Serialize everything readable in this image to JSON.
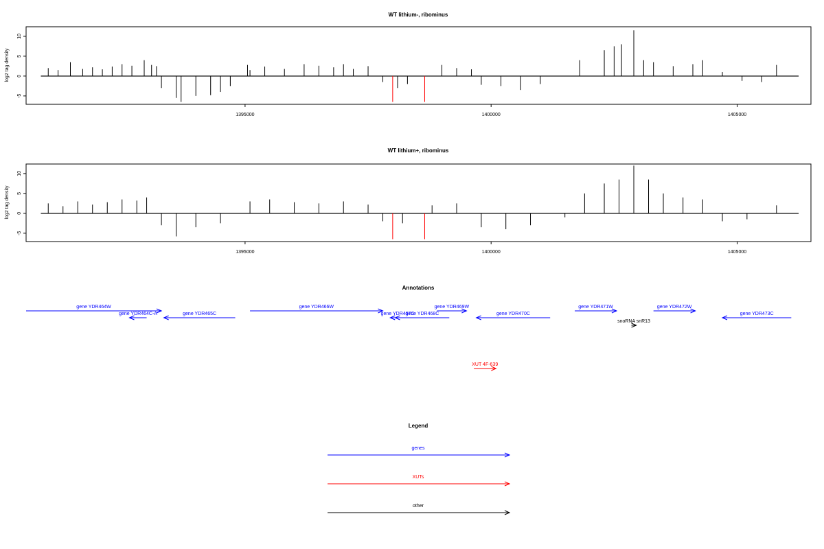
{
  "panels": [
    {
      "title": "WT lithium-, ribominus",
      "ylabel": "log2 tag density",
      "yticks": [
        -5,
        0,
        5,
        10
      ],
      "xticks": [
        1395000,
        1400000,
        1405000
      ],
      "xlim": [
        1390550,
        1406500
      ],
      "ylim": [
        -7.1,
        12.4
      ]
    },
    {
      "title": "WT lithium+, ribominus",
      "ylabel": "log2 tag density",
      "yticks": [
        -5,
        0,
        5,
        10
      ],
      "xticks": [
        1395000,
        1400000,
        1405000
      ],
      "xlim": [
        1390550,
        1406500
      ],
      "ylim": [
        -7.1,
        12.4
      ]
    }
  ],
  "chart_data": [
    {
      "type": "bar",
      "title": "WT lithium-, ribominus",
      "ylabel": "log2 tag density",
      "xlim": [
        1390550,
        1406500
      ],
      "ylim": [
        -7.1,
        12.4
      ],
      "grid": false,
      "series": [
        {
          "values": [
            {
              "x": 1391000,
              "y": 2.0
            },
            {
              "x": 1391200,
              "y": 1.5
            },
            {
              "x": 1391450,
              "y": 3.5
            },
            {
              "x": 1391700,
              "y": 1.8
            },
            {
              "x": 1391900,
              "y": 2.2
            },
            {
              "x": 1392100,
              "y": 1.7
            },
            {
              "x": 1392300,
              "y": 2.4
            },
            {
              "x": 1392500,
              "y": 3.0
            },
            {
              "x": 1392700,
              "y": 2.6
            },
            {
              "x": 1392950,
              "y": 4.0
            },
            {
              "x": 1393100,
              "y": 2.8
            },
            {
              "x": 1393200,
              "y": 2.5
            },
            {
              "x": 1393300,
              "y": -3.0
            },
            {
              "x": 1393600,
              "y": -5.5
            },
            {
              "x": 1393700,
              "y": -6.5
            },
            {
              "x": 1394000,
              "y": -5.0
            },
            {
              "x": 1394300,
              "y": -4.8
            },
            {
              "x": 1394500,
              "y": -4.0
            },
            {
              "x": 1394700,
              "y": -2.5
            },
            {
              "x": 1395050,
              "y": 2.8
            },
            {
              "x": 1395100,
              "y": 1.5
            },
            {
              "x": 1395400,
              "y": 2.4
            },
            {
              "x": 1395800,
              "y": 1.8
            },
            {
              "x": 1396200,
              "y": 3.0
            },
            {
              "x": 1396500,
              "y": 2.6
            },
            {
              "x": 1396800,
              "y": 2.2
            },
            {
              "x": 1397000,
              "y": 3.0
            },
            {
              "x": 1397200,
              "y": 1.8
            },
            {
              "x": 1397500,
              "y": 2.5
            },
            {
              "x": 1397800,
              "y": -1.5
            },
            {
              "x": 1398100,
              "y": -3.0
            },
            {
              "x": 1398300,
              "y": -2.0
            },
            {
              "x": 1399000,
              "y": 2.8
            },
            {
              "x": 1399300,
              "y": 2.0
            },
            {
              "x": 1399600,
              "y": 1.7
            },
            {
              "x": 1399800,
              "y": -2.2
            },
            {
              "x": 1400200,
              "y": -2.5
            },
            {
              "x": 1400600,
              "y": -3.5
            },
            {
              "x": 1401000,
              "y": -2.0
            },
            {
              "x": 1401800,
              "y": 4.0
            },
            {
              "x": 1402300,
              "y": 6.5
            },
            {
              "x": 1402500,
              "y": 7.5
            },
            {
              "x": 1402650,
              "y": 8.0
            },
            {
              "x": 1402900,
              "y": 11.5
            },
            {
              "x": 1403100,
              "y": 4.0
            },
            {
              "x": 1403300,
              "y": 3.5
            },
            {
              "x": 1403700,
              "y": 2.5
            },
            {
              "x": 1404100,
              "y": 3.0
            },
            {
              "x": 1404300,
              "y": 4.0
            },
            {
              "x": 1404700,
              "y": 1.0
            },
            {
              "x": 1405100,
              "y": -1.2
            },
            {
              "x": 1405500,
              "y": -1.5
            },
            {
              "x": 1405800,
              "y": 2.8
            }
          ]
        },
        {
          "name": "XUT",
          "color": "#ff0000",
          "values": [
            {
              "x": 1398000,
              "y": -6.5
            },
            {
              "x": 1398650,
              "y": -6.5
            }
          ]
        }
      ]
    },
    {
      "type": "bar",
      "title": "WT lithium+, ribominus",
      "ylabel": "log2 tag density",
      "xlim": [
        1390550,
        1406500
      ],
      "ylim": [
        -7.1,
        12.4
      ],
      "grid": false,
      "series": [
        {
          "values": [
            {
              "x": 1391000,
              "y": 2.5
            },
            {
              "x": 1391300,
              "y": 1.8
            },
            {
              "x": 1391600,
              "y": 3.0
            },
            {
              "x": 1391900,
              "y": 2.2
            },
            {
              "x": 1392200,
              "y": 2.8
            },
            {
              "x": 1392500,
              "y": 3.5
            },
            {
              "x": 1392800,
              "y": 3.2
            },
            {
              "x": 1393000,
              "y": 4.0
            },
            {
              "x": 1393300,
              "y": -3.0
            },
            {
              "x": 1393600,
              "y": -5.8
            },
            {
              "x": 1394000,
              "y": -3.5
            },
            {
              "x": 1394500,
              "y": -2.5
            },
            {
              "x": 1395100,
              "y": 3.0
            },
            {
              "x": 1395500,
              "y": 3.5
            },
            {
              "x": 1396000,
              "y": 2.8
            },
            {
              "x": 1396500,
              "y": 2.5
            },
            {
              "x": 1397000,
              "y": 3.0
            },
            {
              "x": 1397500,
              "y": 2.2
            },
            {
              "x": 1397800,
              "y": -2.0
            },
            {
              "x": 1398200,
              "y": -2.5
            },
            {
              "x": 1398800,
              "y": 2.0
            },
            {
              "x": 1399300,
              "y": 2.5
            },
            {
              "x": 1399800,
              "y": -3.5
            },
            {
              "x": 1400300,
              "y": -4.0
            },
            {
              "x": 1400800,
              "y": -3.0
            },
            {
              "x": 1401500,
              "y": -1.0
            },
            {
              "x": 1401900,
              "y": 5.0
            },
            {
              "x": 1402300,
              "y": 7.5
            },
            {
              "x": 1402600,
              "y": 8.5
            },
            {
              "x": 1402900,
              "y": 12.0
            },
            {
              "x": 1403200,
              "y": 8.5
            },
            {
              "x": 1403500,
              "y": 5.0
            },
            {
              "x": 1403900,
              "y": 4.0
            },
            {
              "x": 1404300,
              "y": 3.5
            },
            {
              "x": 1404700,
              "y": -2.0
            },
            {
              "x": 1405200,
              "y": -1.5
            },
            {
              "x": 1405800,
              "y": 2.0
            }
          ]
        },
        {
          "name": "XUT",
          "color": "#ff0000",
          "values": [
            {
              "x": 1398000,
              "y": -6.5
            },
            {
              "x": 1398650,
              "y": -6.5
            }
          ]
        }
      ]
    }
  ],
  "annotations": {
    "title": "Annotations",
    "genes": [
      {
        "label": "gene YDR464W",
        "start": 1390550,
        "end": 1393300,
        "strand": "+",
        "type": "gene",
        "row": 0
      },
      {
        "label": "gene YDR464C-A",
        "start": 1392650,
        "end": 1393000,
        "strand": "-",
        "type": "gene",
        "row": 1
      },
      {
        "label": "gene YDR465C",
        "start": 1393350,
        "end": 1394800,
        "strand": "-",
        "type": "gene",
        "row": 1
      },
      {
        "label": "gene YDR466W",
        "start": 1395100,
        "end": 1397800,
        "strand": "+",
        "type": "gene",
        "row": 0
      },
      {
        "label": "gene YDR467C",
        "start": 1397950,
        "end": 1398250,
        "strand": "-",
        "type": "gene",
        "row": 1
      },
      {
        "label": "gene YDR468C",
        "start": 1398050,
        "end": 1399150,
        "strand": "-",
        "type": "gene",
        "row": 1
      },
      {
        "label": "gene YDR469W",
        "start": 1398900,
        "end": 1399500,
        "strand": "+",
        "type": "gene",
        "row": 0
      },
      {
        "label": "gene YDR470C",
        "start": 1399700,
        "end": 1401200,
        "strand": "-",
        "type": "gene",
        "row": 1
      },
      {
        "label": "gene YDR471W",
        "start": 1401700,
        "end": 1402550,
        "strand": "+",
        "type": "gene",
        "row": 0
      },
      {
        "label": "gene YDR472W",
        "start": 1403300,
        "end": 1404150,
        "strand": "+",
        "type": "gene",
        "row": 0
      },
      {
        "label": "gene YDR473C",
        "start": 1404700,
        "end": 1406100,
        "strand": "-",
        "type": "gene",
        "row": 1
      },
      {
        "label": "snoRNA snR13",
        "start": 1402850,
        "end": 1402950,
        "strand": "+",
        "type": "other",
        "row": 2
      },
      {
        "label": "XUT 4F-639",
        "start": 1399650,
        "end": 1400100,
        "strand": "+",
        "type": "xut",
        "row": 3
      }
    ]
  },
  "legend": {
    "title": "Legend",
    "items": [
      {
        "label": "genes",
        "color": "#0000ff"
      },
      {
        "label": "XUTs",
        "color": "#ff0000"
      },
      {
        "label": "other",
        "color": "#000000"
      }
    ]
  },
  "colors": {
    "gene": "#0000ff",
    "xut": "#ff0000",
    "other": "#000000",
    "signal": "#000000"
  }
}
